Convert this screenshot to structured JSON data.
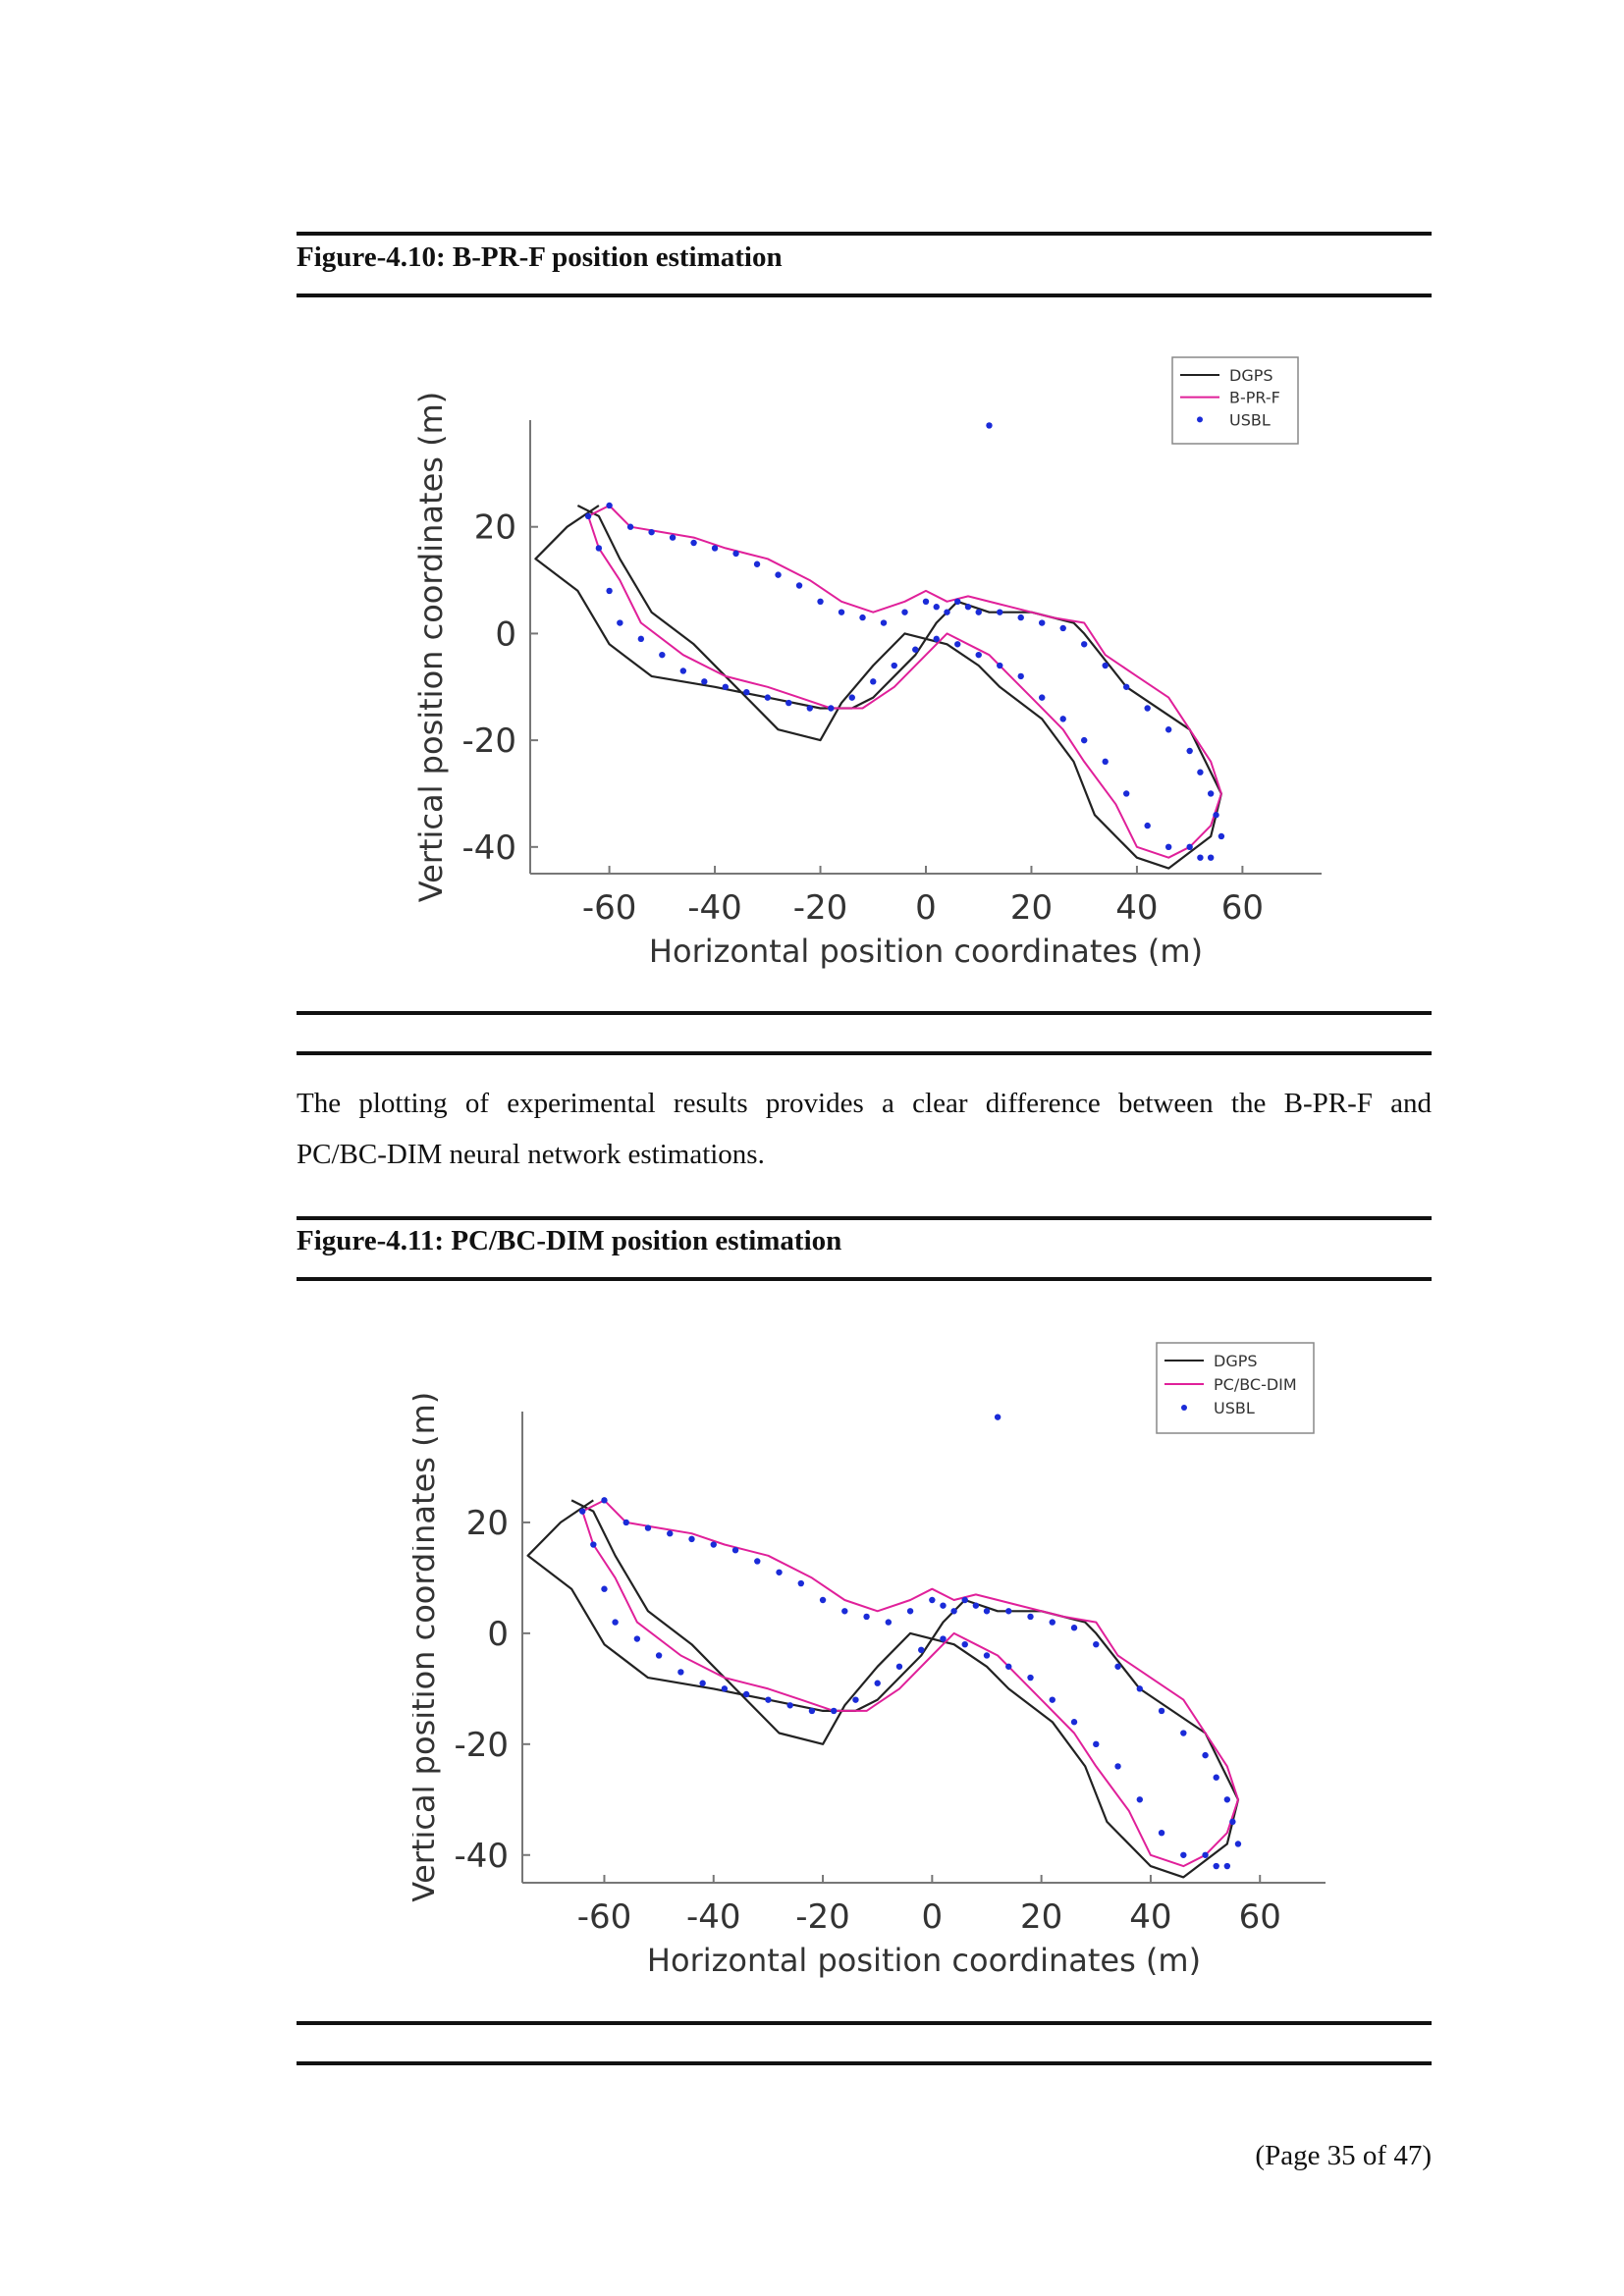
{
  "figures": [
    {
      "caption": "Figure-4.10: B-PR-F position estimation",
      "chart_data": {
        "type": "line",
        "title": "",
        "xlabel": "Horizontal position coordinates (m)",
        "ylabel": "Vertical position coordinates (m)",
        "xlim": [
          -75,
          75
        ],
        "ylim": [
          -45,
          40
        ],
        "xticks": [
          -60,
          -40,
          -20,
          0,
          20,
          40,
          60
        ],
        "yticks": [
          -40,
          -20,
          0,
          20
        ],
        "grid": false,
        "legend_position": "top-right",
        "series": [
          {
            "name": "DGPS",
            "color": "#222222",
            "style": "line",
            "x": [
              -62,
              -68,
              -74,
              -66,
              -60,
              -52,
              -40,
              -30,
              -20,
              -14,
              -10,
              -2,
              2,
              6,
              12,
              20,
              28,
              30,
              38,
              50,
              56,
              54,
              46,
              40,
              32,
              28,
              22,
              14,
              10,
              4,
              -4,
              -10,
              -16,
              -20,
              -28,
              -36,
              -44,
              -52,
              -58,
              -62,
              -66
            ],
            "y": [
              24,
              20,
              14,
              8,
              -2,
              -8,
              -10,
              -12,
              -14,
              -14,
              -12,
              -4,
              2,
              6,
              4,
              4,
              2,
              0,
              -10,
              -18,
              -30,
              -38,
              -44,
              -42,
              -34,
              -24,
              -16,
              -10,
              -6,
              -2,
              0,
              -6,
              -13,
              -20,
              -18,
              -10,
              -2,
              4,
              14,
              22,
              24
            ]
          },
          {
            "name": "B-PR-F",
            "color": "#e0209a",
            "style": "line",
            "x": [
              -64,
              -60,
              -56,
              -50,
              -44,
              -38,
              -30,
              -22,
              -16,
              -10,
              -4,
              0,
              4,
              8,
              16,
              24,
              30,
              34,
              40,
              46,
              50,
              54,
              56,
              54,
              50,
              46,
              40,
              36,
              30,
              26,
              20,
              16,
              12,
              8,
              4,
              0,
              -6,
              -12,
              -18,
              -24,
              -30,
              -38,
              -46,
              -54,
              -58,
              -62,
              -64
            ],
            "y": [
              22,
              24,
              20,
              19,
              18,
              16,
              14,
              10,
              6,
              4,
              6,
              8,
              6,
              7,
              5,
              3,
              2,
              -4,
              -8,
              -12,
              -18,
              -24,
              -30,
              -36,
              -40,
              -42,
              -40,
              -32,
              -24,
              -18,
              -12,
              -8,
              -4,
              -2,
              0,
              -4,
              -10,
              -14,
              -14,
              -12,
              -10,
              -8,
              -4,
              2,
              10,
              16,
              22
            ]
          },
          {
            "name": "USBL",
            "color": "#1a2bd8",
            "style": "points",
            "x": [
              -64,
              -60,
              -56,
              -52,
              -48,
              -44,
              -40,
              -36,
              -32,
              -28,
              -24,
              -20,
              -16,
              -12,
              -8,
              -4,
              0,
              2,
              4,
              6,
              8,
              10,
              14,
              18,
              22,
              26,
              30,
              34,
              38,
              42,
              46,
              50,
              52,
              54,
              55,
              56,
              54,
              52,
              50,
              46,
              42,
              38,
              34,
              30,
              26,
              22,
              18,
              14,
              10,
              6,
              2,
              -2,
              -6,
              -10,
              -14,
              -18,
              -22,
              -26,
              -30,
              -34,
              -38,
              -42,
              -46,
              -50,
              -54,
              -58,
              -60,
              -62,
              12
            ],
            "y": [
              22,
              24,
              20,
              19,
              18,
              17,
              16,
              15,
              13,
              11,
              9,
              6,
              4,
              3,
              2,
              4,
              6,
              5,
              4,
              6,
              5,
              4,
              4,
              3,
              2,
              1,
              -2,
              -6,
              -10,
              -14,
              -18,
              -22,
              -26,
              -30,
              -34,
              -38,
              -42,
              -42,
              -40,
              -40,
              -36,
              -30,
              -24,
              -20,
              -16,
              -12,
              -8,
              -6,
              -4,
              -2,
              -1,
              -3,
              -6,
              -9,
              -12,
              -14,
              -14,
              -13,
              -12,
              -11,
              -10,
              -9,
              -7,
              -4,
              -1,
              2,
              8,
              16,
              39
            ]
          }
        ]
      }
    },
    {
      "caption": "Figure-4.11: PC/BC-DIM position estimation",
      "chart_data": {
        "type": "line",
        "title": "",
        "xlabel": "Horizontal position coordinates (m)",
        "ylabel": "Vertical position coordinates (m)",
        "xlim": [
          -75,
          72
        ],
        "ylim": [
          -45,
          40
        ],
        "xticks": [
          -60,
          -40,
          -20,
          0,
          20,
          40,
          60
        ],
        "yticks": [
          -40,
          -20,
          0,
          20
        ],
        "grid": false,
        "legend_position": "top-right",
        "series": [
          {
            "name": "DGPS",
            "color": "#222222",
            "style": "line",
            "x": [
              -62,
              -68,
              -74,
              -66,
              -60,
              -52,
              -40,
              -30,
              -20,
              -14,
              -10,
              -2,
              2,
              6,
              12,
              20,
              28,
              30,
              38,
              50,
              56,
              54,
              46,
              40,
              32,
              28,
              22,
              14,
              10,
              4,
              -4,
              -10,
              -16,
              -20,
              -28,
              -36,
              -44,
              -52,
              -58,
              -62,
              -66
            ],
            "y": [
              24,
              20,
              14,
              8,
              -2,
              -8,
              -10,
              -12,
              -14,
              -14,
              -12,
              -4,
              2,
              6,
              4,
              4,
              2,
              0,
              -10,
              -18,
              -30,
              -38,
              -44,
              -42,
              -34,
              -24,
              -16,
              -10,
              -6,
              -2,
              0,
              -6,
              -13,
              -20,
              -18,
              -10,
              -2,
              4,
              14,
              22,
              24
            ]
          },
          {
            "name": "PC/BC-DIM",
            "color": "#e0209a",
            "style": "line",
            "x": [
              -64,
              -60,
              -56,
              -50,
              -44,
              -38,
              -30,
              -22,
              -16,
              -10,
              -4,
              0,
              4,
              8,
              16,
              24,
              30,
              34,
              40,
              46,
              50,
              54,
              56,
              54,
              50,
              46,
              40,
              36,
              30,
              26,
              20,
              16,
              12,
              8,
              4,
              0,
              -6,
              -12,
              -18,
              -24,
              -30,
              -38,
              -46,
              -54,
              -58,
              -62,
              -64
            ],
            "y": [
              22,
              24,
              20,
              19,
              18,
              16,
              14,
              10,
              6,
              4,
              6,
              8,
              6,
              7,
              5,
              3,
              2,
              -4,
              -8,
              -12,
              -18,
              -24,
              -30,
              -36,
              -40,
              -42,
              -40,
              -32,
              -24,
              -18,
              -12,
              -8,
              -4,
              -2,
              0,
              -4,
              -10,
              -14,
              -14,
              -12,
              -10,
              -8,
              -4,
              2,
              10,
              16,
              22
            ]
          },
          {
            "name": "USBL",
            "color": "#1a2bd8",
            "style": "points",
            "x": [
              -64,
              -60,
              -56,
              -52,
              -48,
              -44,
              -40,
              -36,
              -32,
              -28,
              -24,
              -20,
              -16,
              -12,
              -8,
              -4,
              0,
              2,
              4,
              6,
              8,
              10,
              14,
              18,
              22,
              26,
              30,
              34,
              38,
              42,
              46,
              50,
              52,
              54,
              55,
              56,
              54,
              52,
              50,
              46,
              42,
              38,
              34,
              30,
              26,
              22,
              18,
              14,
              10,
              6,
              2,
              -2,
              -6,
              -10,
              -14,
              -18,
              -22,
              -26,
              -30,
              -34,
              -38,
              -42,
              -46,
              -50,
              -54,
              -58,
              -60,
              -62,
              12
            ],
            "y": [
              22,
              24,
              20,
              19,
              18,
              17,
              16,
              15,
              13,
              11,
              9,
              6,
              4,
              3,
              2,
              4,
              6,
              5,
              4,
              6,
              5,
              4,
              4,
              3,
              2,
              1,
              -2,
              -6,
              -10,
              -14,
              -18,
              -22,
              -26,
              -30,
              -34,
              -38,
              -42,
              -42,
              -40,
              -40,
              -36,
              -30,
              -24,
              -20,
              -16,
              -12,
              -8,
              -6,
              -4,
              -2,
              -1,
              -3,
              -6,
              -9,
              -12,
              -14,
              -14,
              -13,
              -12,
              -11,
              -10,
              -9,
              -7,
              -4,
              -1,
              2,
              8,
              16,
              39
            ]
          }
        ]
      }
    }
  ],
  "paragraph": {
    "line1": "The plotting of experimental results provides a clear difference between the B-PR-F and",
    "line2": "PC/BC-DIM neural network estimations."
  },
  "footer": {
    "page": "(Page 35 of 47)"
  }
}
